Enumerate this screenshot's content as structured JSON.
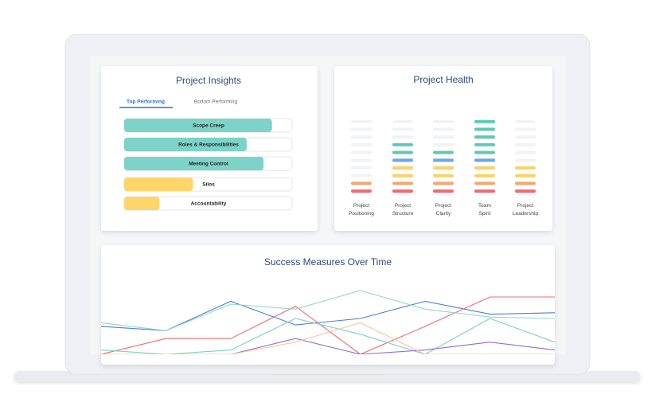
{
  "insights": {
    "title": "Project Insights",
    "tabs": [
      "Top Performing",
      "Bottom Performing"
    ],
    "bar_max": 100,
    "bars": [
      {
        "label": "Scope Creep",
        "value": 88,
        "color": "#7dd3c8"
      },
      {
        "label": "Roles & Responsibilities",
        "value": 73,
        "color": "#7dd3c8"
      },
      {
        "label": "Meeting Control",
        "value": 83,
        "color": "#7dd3c8"
      },
      {
        "label": "Silos",
        "value": 41,
        "color": "#fdd56b"
      },
      {
        "label": "Accountability",
        "value": 21,
        "color": "#fdd56b"
      }
    ]
  },
  "health": {
    "title": "Project Health",
    "slots": 10,
    "level_colors": [
      "#ef6b73",
      "#f4a870",
      "#fbd165",
      "#fbd165",
      "#6aa5ef",
      "#5cc9b4",
      "#5cc9b4",
      "#5cc9b4",
      "#5cc9b4",
      "#5cc9b4"
    ],
    "categories": [
      "Project Positioning",
      "Project Structure",
      "Project Clarity",
      "Team Spirit",
      "Project Leadership"
    ],
    "values": [
      2,
      7,
      6,
      10,
      4
    ]
  },
  "success": {
    "title": "Success Measures Over Time",
    "ylim": [
      0,
      100
    ],
    "series": [
      {
        "color": "#4a7fd6",
        "values": [
          39,
          33,
          74,
          41,
          50,
          74,
          56,
          58
        ]
      },
      {
        "color": "#ee6b78",
        "values": [
          0,
          22,
          22,
          67,
          0,
          39,
          80,
          80
        ]
      },
      {
        "color": "#8fd8c6",
        "values": [
          44,
          33,
          70,
          63,
          89,
          63,
          52,
          50
        ]
      },
      {
        "color": "#7fcfc0",
        "values": [
          6,
          0,
          6,
          50,
          28,
          0,
          50,
          17
        ]
      },
      {
        "color": "#8a6fd8",
        "values": [
          0,
          0,
          0,
          22,
          0,
          6,
          17,
          6
        ]
      },
      {
        "color": "#f8c59a",
        "values": [
          0,
          0,
          0,
          17,
          44,
          0,
          0,
          0
        ]
      }
    ]
  }
}
